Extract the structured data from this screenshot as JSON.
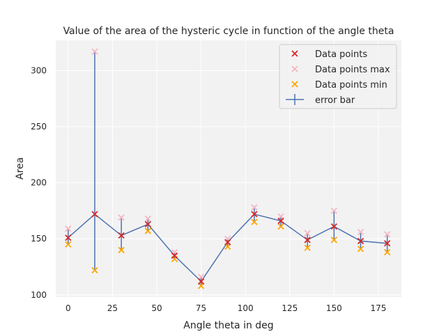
{
  "chart_data": {
    "type": "scatter",
    "title": "Value of the area of the hysteric cycle in function of the angle theta",
    "xlabel": "Angle theta in deg",
    "ylabel": "Area",
    "xlim": [
      -7,
      188
    ],
    "ylim": [
      98,
      327
    ],
    "xticks": [
      0,
      25,
      50,
      75,
      100,
      125,
      150,
      175
    ],
    "yticks": [
      100,
      150,
      200,
      250,
      300
    ],
    "grid": true,
    "legend_position": "top-right",
    "x": [
      0,
      15,
      30,
      45,
      60,
      75,
      90,
      105,
      120,
      135,
      150,
      165,
      180
    ],
    "series": [
      {
        "name": "Data points",
        "marker": "x",
        "color": "#d62728",
        "values": [
          151,
          172,
          153,
          163,
          135,
          112,
          147,
          172,
          166,
          149,
          161,
          148,
          146
        ]
      },
      {
        "name": "Data points max",
        "marker": "x",
        "color": "#f4b6c2",
        "values": [
          159,
          317,
          169,
          168,
          138,
          116,
          150,
          178,
          170,
          155,
          175,
          156,
          154
        ]
      },
      {
        "name": "Data points min",
        "marker": "x",
        "color": "#ffa500",
        "values": [
          145,
          122,
          140,
          157,
          132,
          108,
          143,
          165,
          161,
          142,
          149,
          141,
          138
        ]
      },
      {
        "name": "error bar",
        "type": "line",
        "color": "#4c72b0",
        "values": [
          151,
          172,
          153,
          163,
          135,
          112,
          147,
          172,
          166,
          149,
          161,
          148,
          146
        ]
      }
    ]
  }
}
